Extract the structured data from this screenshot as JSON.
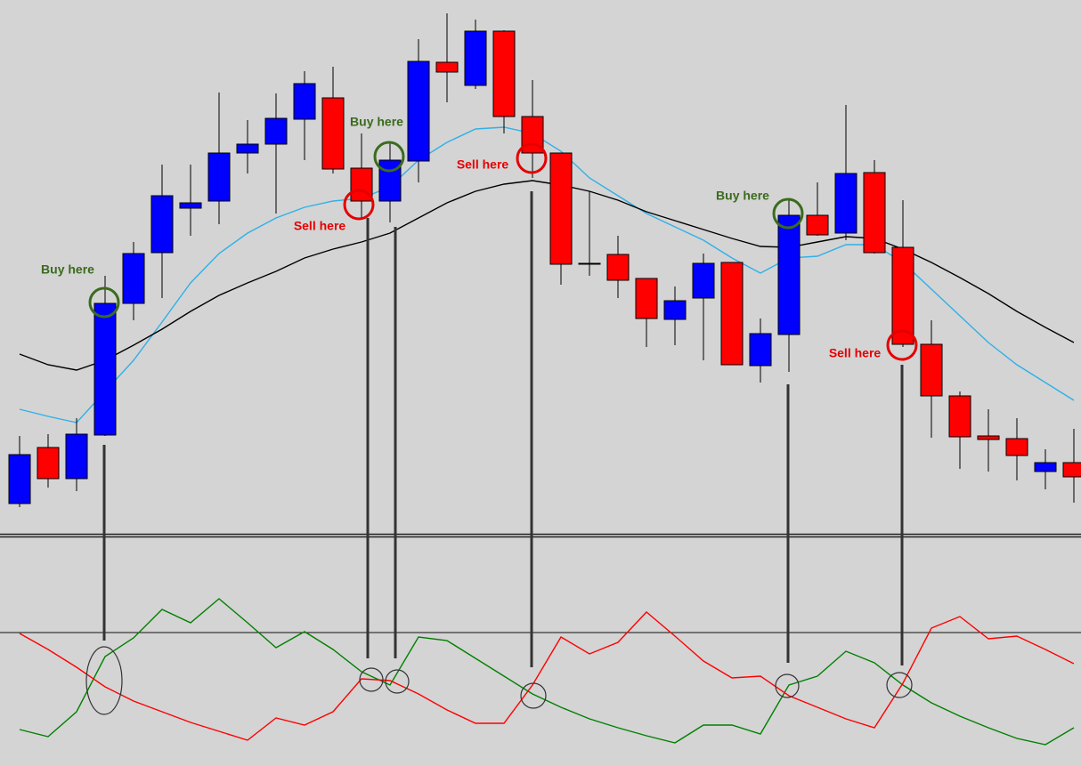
{
  "chart_data": [
    {
      "type": "candlestick",
      "x": [
        0,
        1,
        2,
        3,
        4,
        5,
        6,
        7,
        8,
        9,
        10,
        11,
        12,
        13,
        14,
        15,
        16,
        17,
        18,
        19,
        20,
        21,
        22,
        23,
        24,
        25,
        26,
        27,
        28,
        29,
        30,
        31,
        32,
        33,
        34,
        35,
        36,
        37
      ],
      "xlim": [
        -0.6875,
        37.25
      ],
      "ylim": [
        0,
        600
      ],
      "open": [
        34,
        97,
        62,
        111,
        259,
        316,
        366,
        374,
        428,
        438,
        466,
        490,
        411,
        374,
        419,
        530,
        504,
        565,
        469,
        428,
        303,
        314,
        287,
        241,
        265,
        305,
        189,
        224,
        358,
        338,
        406,
        322,
        213,
        155,
        110,
        107,
        70,
        80
      ],
      "close": [
        89,
        62,
        112,
        259,
        315,
        380,
        372,
        428,
        438,
        467,
        506,
        410,
        374,
        420,
        531,
        519,
        565,
        469,
        428,
        303,
        304,
        285,
        242,
        262,
        304,
        190,
        225,
        358,
        336,
        405,
        316,
        213,
        155,
        109,
        106,
        88,
        80,
        64
      ],
      "high": [
        110,
        112,
        130,
        290,
        328,
        415,
        415,
        496,
        465,
        495,
        520,
        525,
        450,
        440,
        556,
        585,
        578,
        566,
        510,
        428,
        385,
        335,
        287,
        278,
        315,
        305,
        242,
        375,
        395,
        482,
        420,
        375,
        240,
        160,
        140,
        130,
        95,
        118
      ],
      "low": [
        30,
        52,
        48,
        110,
        240,
        265,
        335,
        348,
        405,
        360,
        420,
        405,
        355,
        350,
        395,
        485,
        500,
        450,
        400,
        280,
        290,
        265,
        210,
        212,
        195,
        190,
        170,
        182,
        335,
        330,
        315,
        210,
        108,
        73,
        70,
        60,
        50,
        35
      ],
      "up_color": "#0000ff",
      "down_color": "#ff0000",
      "series": [
        {
          "color": "#2fb0e8",
          "values": [
            140,
            132,
            125,
            160,
            195,
            238,
            282,
            315,
            338,
            355,
            367,
            374,
            377,
            390,
            420,
            440,
            455,
            457,
            450,
            430,
            400,
            380,
            360,
            345,
            330,
            310,
            293,
            310,
            312,
            325,
            325,
            305,
            275,
            245,
            215,
            190,
            170,
            150
          ]
        },
        {
          "color": "#000000",
          "values": [
            202,
            190,
            184,
            195,
            212,
            230,
            250,
            268,
            282,
            295,
            310,
            320,
            328,
            338,
            355,
            372,
            385,
            393,
            397,
            392,
            385,
            375,
            362,
            352,
            342,
            332,
            323,
            322,
            328,
            334,
            332,
            320,
            305,
            288,
            270,
            250,
            232,
            215
          ]
        }
      ]
    },
    {
      "type": "line",
      "x": [
        0,
        1,
        2,
        3,
        4,
        5,
        6,
        7,
        8,
        9,
        10,
        11,
        12,
        13,
        14,
        15,
        16,
        17,
        18,
        19,
        20,
        21,
        22,
        23,
        24,
        25,
        26,
        27,
        28,
        29,
        30,
        31,
        32,
        33,
        34,
        35,
        36,
        37
      ],
      "xlim": [
        -0.6875,
        37.25
      ],
      "ylim": [
        0,
        256
      ],
      "hline": 150,
      "series": [
        {
          "color": "#008000",
          "values": [
            41,
            33,
            61,
            123,
            144,
            176,
            161,
            188,
            161,
            133,
            151,
            131,
            106,
            91,
            145,
            141,
            121,
            101,
            81,
            66,
            53,
            43,
            34,
            26,
            46,
            46,
            36,
            91,
            101,
            129,
            116,
            91,
            71,
            56,
            43,
            31,
            24,
            43
          ]
        },
        {
          "color": "#ff0000",
          "values": [
            149,
            131,
            111,
            89,
            73,
            61,
            49,
            39,
            29,
            54,
            46,
            61,
            98,
            96,
            81,
            63,
            48,
            48,
            91,
            145,
            126,
            139,
            173,
            146,
            118,
            99,
            101,
            79,
            66,
            53,
            43,
            93,
            155,
            168,
            143,
            146,
            131,
            115
          ]
        }
      ]
    }
  ],
  "annotations": [
    {
      "text": "Buy here",
      "color": "#3b6b1e"
    },
    {
      "text": "Buy here",
      "color": "#3b6b1e"
    },
    {
      "text": "Buy here",
      "color": "#3b6b1e"
    },
    {
      "text": "Sell here",
      "color": "#e50000"
    },
    {
      "text": "Sell here",
      "color": "#e50000"
    },
    {
      "text": "Sell here",
      "color": "#e50000"
    }
  ]
}
